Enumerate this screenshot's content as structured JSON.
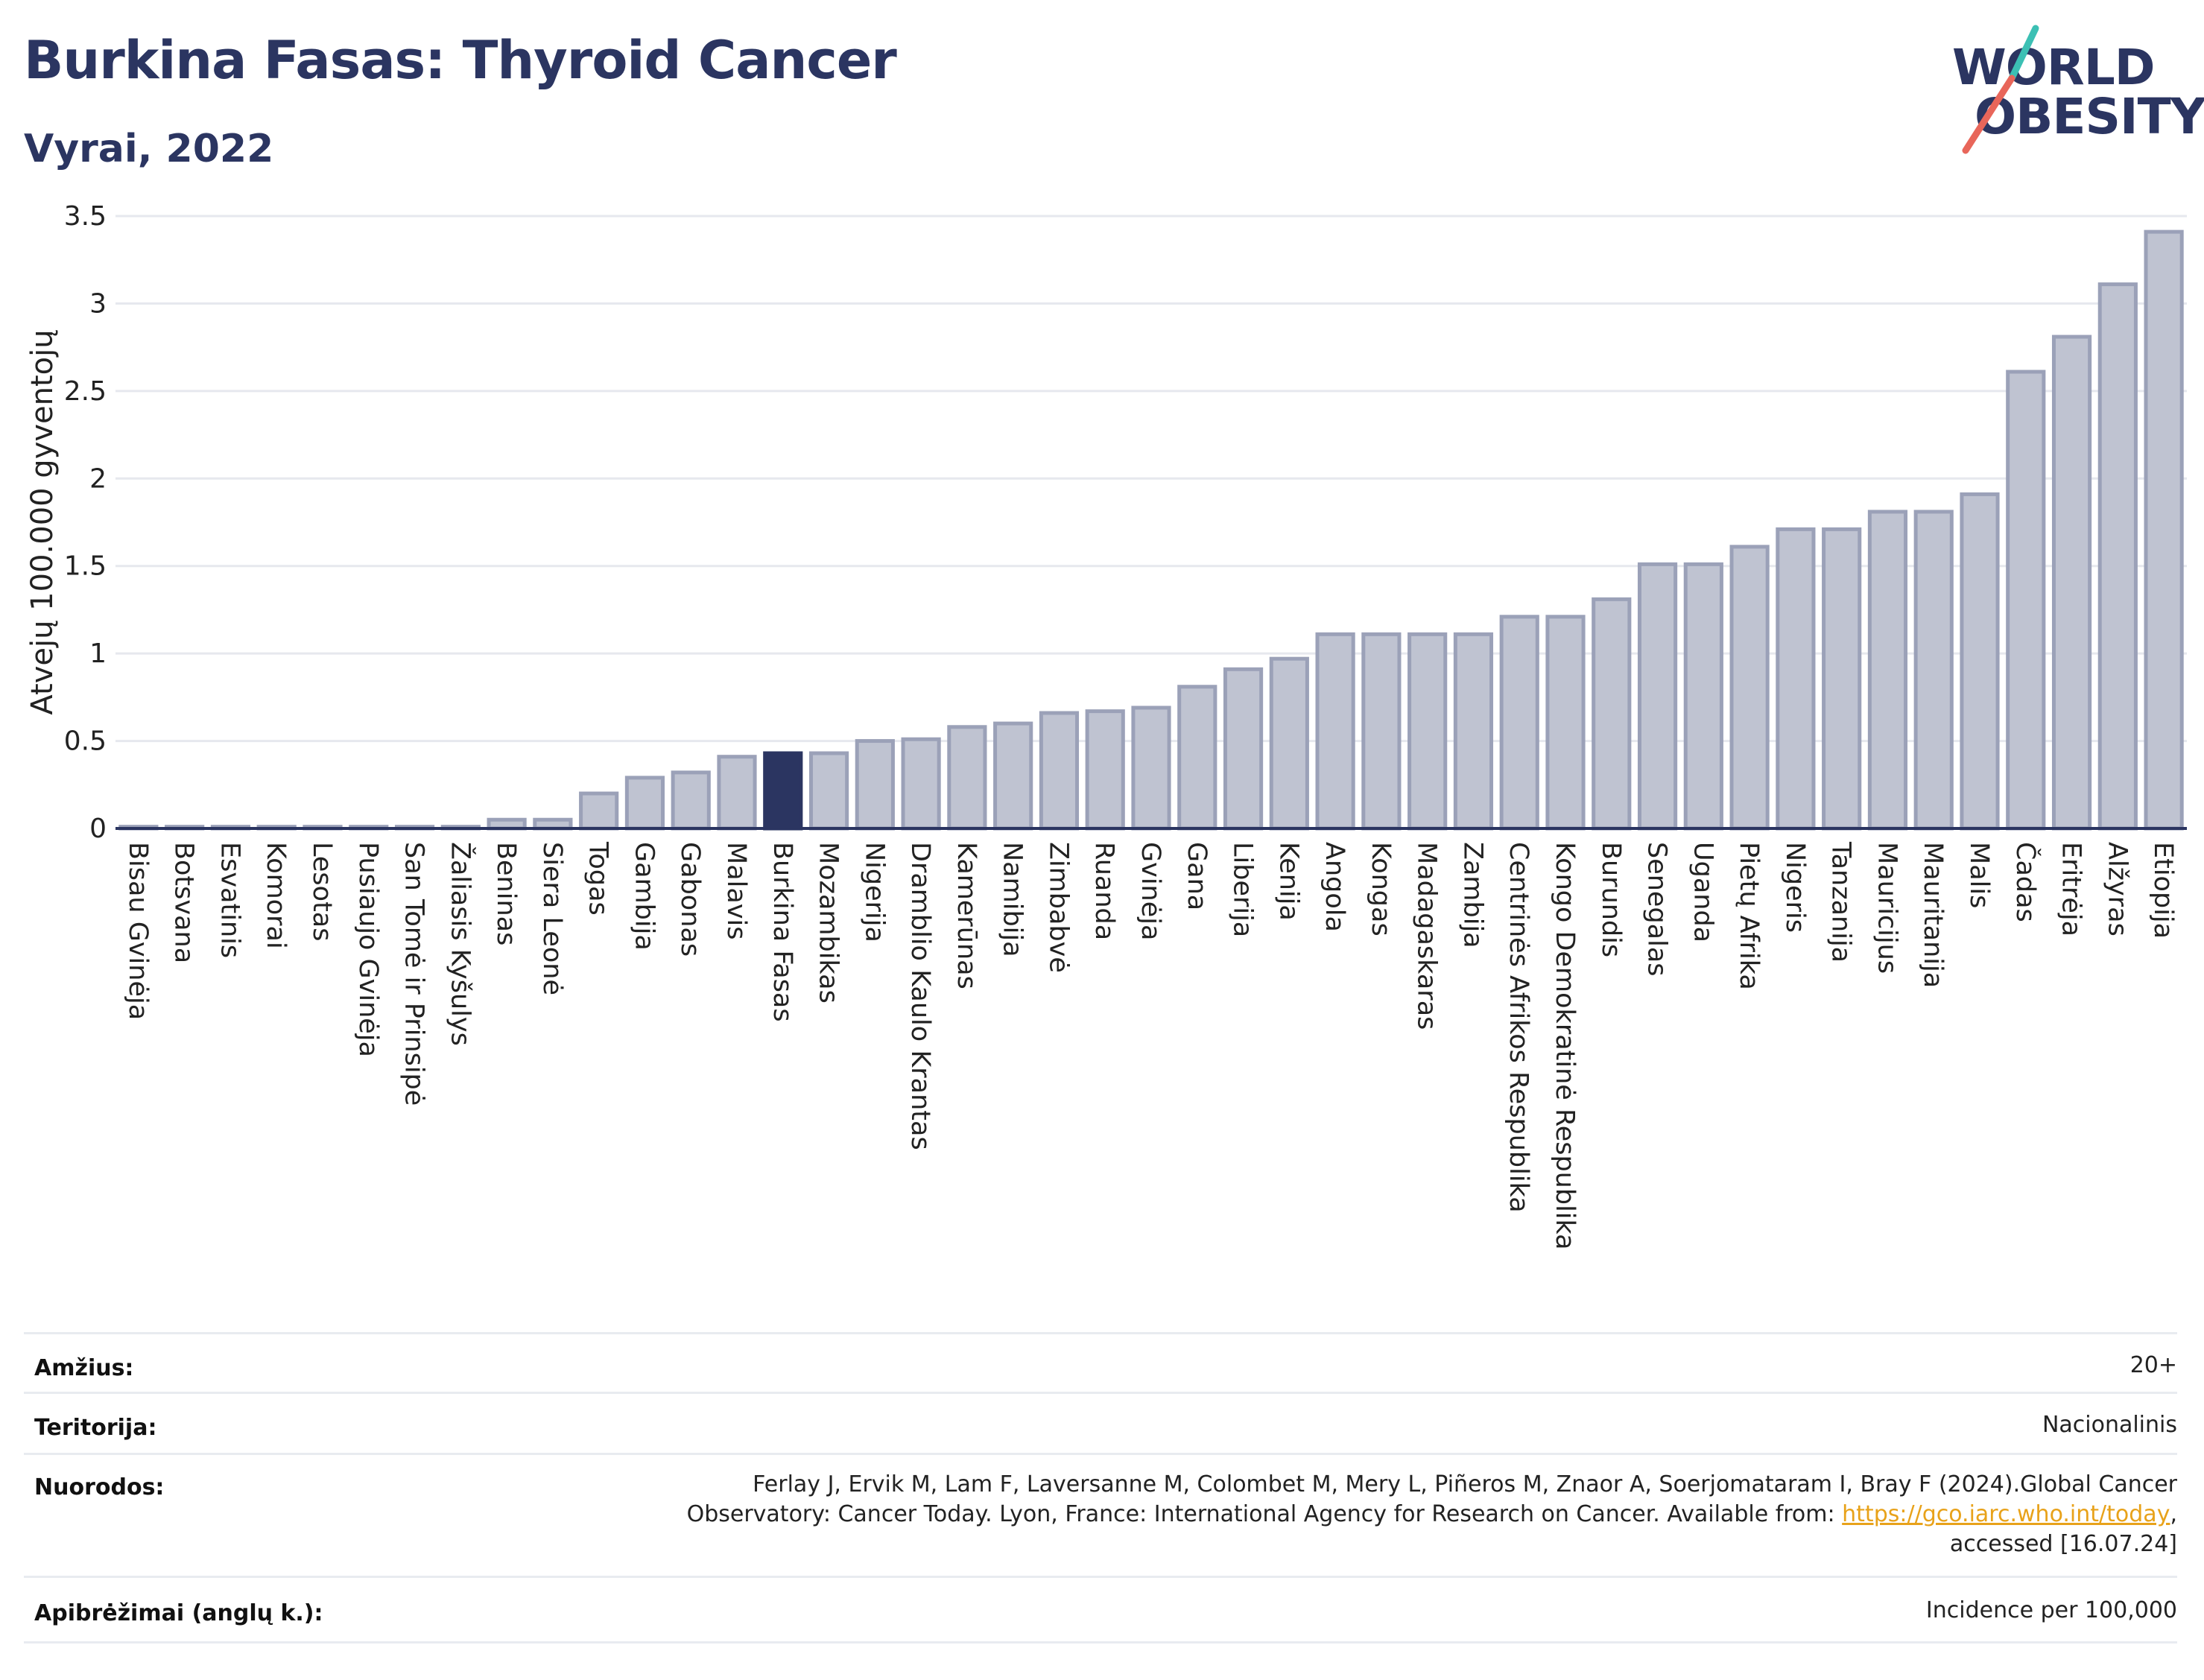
{
  "header": {
    "title": "Burkina Fasas: Thyroid Cancer",
    "subtitle": "Vyrai, 2022"
  },
  "logo": {
    "line1": "WORLD",
    "line2": "OBESITY",
    "colors": [
      "#2b3561",
      "#3cc0b4",
      "#e8665a"
    ]
  },
  "chart_data": {
    "type": "bar",
    "ylabel": "Atvejų 100.000 gyventojų",
    "xlabel": "",
    "ylim": [
      0,
      3.5
    ],
    "yticks": [
      "0",
      "0.5",
      "1",
      "1.5",
      "2",
      "2.5",
      "3",
      "3.5"
    ],
    "grid": true,
    "highlight": "Burkina Fasas",
    "colors": {
      "bar": "#bfc3d1",
      "bar_border": "#9ba1b8",
      "highlight": "#2b3561",
      "axis": "#2b3561",
      "grid": "#e6e8ee"
    },
    "categories": [
      "Bisau Gvinėja",
      "Botsvana",
      "Esvatinis",
      "Komorai",
      "Lesotas",
      "Pusiaujo Gvinėja",
      "San Tomė ir Prinsipė",
      "Žaliasis Kyšulys",
      "Beninas",
      "Siera Leonė",
      "Togas",
      "Gambija",
      "Gabonas",
      "Malavis",
      "Burkina Fasas",
      "Mozambikas",
      "Nigerija",
      "Dramblio Kaulo Krantas",
      "Kamerūnas",
      "Namibija",
      "Zimbabvė",
      "Ruanda",
      "Gvinėja",
      "Gana",
      "Liberija",
      "Kenija",
      "Angola",
      "Kongas",
      "Madagaskaras",
      "Zambija",
      "Centrinės Afrikos Respublika",
      "Kongo Demokratinė Respublika",
      "Burundis",
      "Senegalas",
      "Uganda",
      "Pietų Afrika",
      "Nigeris",
      "Tanzanija",
      "Mauricijus",
      "Mauritanija",
      "Malis",
      "Čadas",
      "Eritrėja",
      "Alžyras",
      "Etiopija"
    ],
    "values": [
      0.01,
      0.01,
      0.01,
      0.01,
      0.01,
      0.01,
      0.01,
      0.01,
      0.05,
      0.05,
      0.2,
      0.29,
      0.32,
      0.41,
      0.43,
      0.43,
      0.5,
      0.51,
      0.58,
      0.6,
      0.66,
      0.67,
      0.69,
      0.81,
      0.91,
      0.97,
      1.11,
      1.11,
      1.11,
      1.11,
      1.21,
      1.21,
      1.31,
      1.51,
      1.51,
      1.61,
      1.71,
      1.71,
      1.81,
      1.81,
      1.91,
      2.61,
      2.81,
      3.11,
      3.41
    ]
  },
  "info": {
    "rows": [
      {
        "label": "Amžius:",
        "value": "20+"
      },
      {
        "label": "Teritorija:",
        "value": "Nacionalinis"
      },
      {
        "label": "Nuorodos:",
        "value_line1": "Ferlay J, Ervik M, Lam F, Laversanne M, Colombet M, Mery L, Piñeros M, Znaor A, Soerjomataram I, Bray F (2024).Global Cancer",
        "value_line2_pre": "Observatory: Cancer Today. Lyon, France: International Agency for Research on Cancer. Available from: ",
        "value_link": "https://gco.iarc.who.int/today",
        "value_line2_post": ",",
        "value_line3": "accessed [16.07.24]"
      },
      {
        "label": "Apibrėžimai (anglų k.):",
        "value": "Incidence per 100,000"
      }
    ]
  }
}
